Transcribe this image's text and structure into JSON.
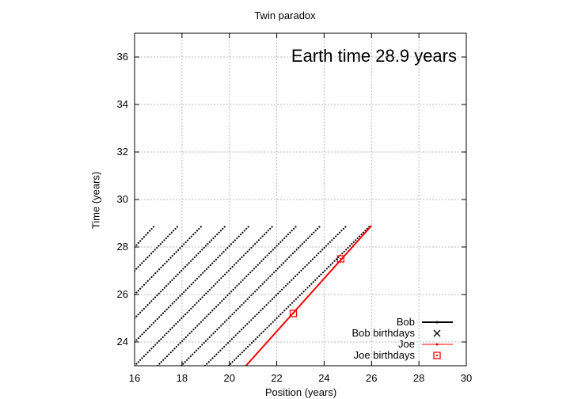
{
  "chart_data": {
    "type": "line",
    "title": "Twin paradox",
    "xlabel": "Position (years)",
    "ylabel": "Time (years)",
    "xlim": [
      16,
      30
    ],
    "ylim": [
      23,
      37
    ],
    "x_ticks": [
      "16",
      "18",
      "20",
      "22",
      "24",
      "26",
      "28",
      "30"
    ],
    "y_ticks": [
      "24",
      "26",
      "28",
      "30",
      "32",
      "34",
      "36"
    ],
    "grid": true,
    "legend_position": "bottom-right",
    "annotation": "Earth time 28.9 years",
    "series": [
      {
        "name": "Bob",
        "style": "dotted world lines",
        "color": "#000000",
        "lines": [
          {
            "x": [
              16.0,
              16.8
            ],
            "y": [
              28.0,
              28.85
            ]
          },
          {
            "x": [
              16.0,
              17.8
            ],
            "y": [
              27.0,
              28.85
            ]
          },
          {
            "x": [
              16.0,
              18.8
            ],
            "y": [
              26.0,
              28.85
            ]
          },
          {
            "x": [
              16.0,
              19.8
            ],
            "y": [
              25.0,
              28.85
            ]
          },
          {
            "x": [
              16.0,
              20.8
            ],
            "y": [
              24.0,
              28.85
            ]
          },
          {
            "x": [
              16.0,
              21.8
            ],
            "y": [
              23.0,
              28.85
            ]
          },
          {
            "x": [
              16.97,
              22.8
            ],
            "y": [
              23.0,
              28.85
            ]
          },
          {
            "x": [
              17.97,
              23.8
            ],
            "y": [
              23.0,
              28.85
            ]
          },
          {
            "x": [
              18.97,
              24.9
            ],
            "y": [
              23.0,
              28.85
            ]
          },
          {
            "x": [
              19.97,
              25.9
            ],
            "y": [
              23.0,
              28.85
            ]
          }
        ]
      },
      {
        "name": "Bob birthdays",
        "marker": "x",
        "color": "#000000",
        "points": []
      },
      {
        "name": "Joe",
        "color": "#ff0000",
        "x": [
          20.7,
          26.0
        ],
        "y": [
          23.0,
          28.9
        ]
      },
      {
        "name": "Joe birthdays",
        "marker": "square",
        "color": "#ff0000",
        "x": [
          22.7,
          24.7
        ],
        "y": [
          25.2,
          27.5
        ]
      }
    ]
  }
}
